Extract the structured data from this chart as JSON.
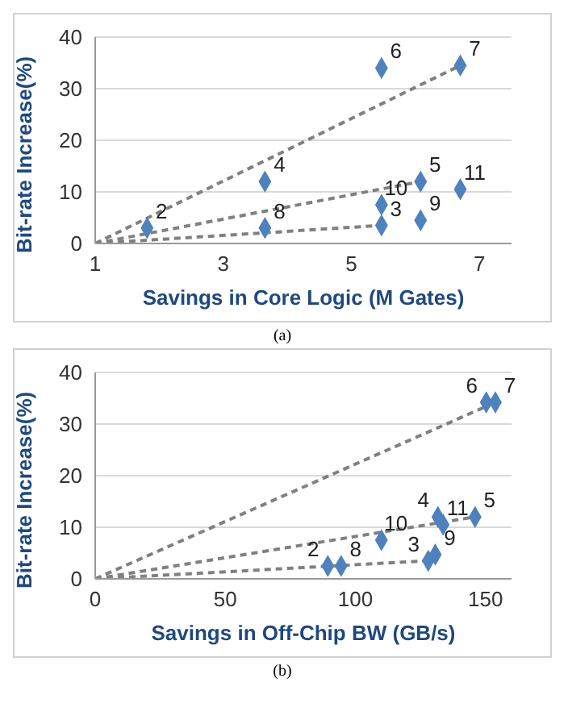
{
  "chart_data": [
    {
      "type": "scatter",
      "xlabel": "Savings in Core Logic (M Gates)",
      "ylabel": "Bit-rate Increase(%)",
      "xlim": [
        1,
        7.5
      ],
      "xticks": [
        1,
        3,
        5,
        7
      ],
      "ylim": [
        0,
        40
      ],
      "yticks": [
        0,
        10,
        20,
        30,
        40
      ],
      "grid": "y",
      "series": [
        {
          "type": "scatter",
          "marker": "diamond",
          "color": "#4f81bd",
          "x": [
            1.81,
            5.47,
            3.65,
            6.08,
            5.47,
            6.7,
            3.65,
            6.08,
            5.47,
            6.7
          ],
          "values": [
            3,
            3.5,
            12,
            12,
            34,
            34.5,
            3,
            4.5,
            7.5,
            10.5
          ]
        },
        {
          "type": "line",
          "color": "#808080",
          "line_style": "dashed",
          "x": [
            1,
            6.7
          ],
          "values": [
            0,
            34.5
          ]
        },
        {
          "type": "line",
          "color": "#808080",
          "line_style": "dashed",
          "x": [
            1,
            6.08
          ],
          "values": [
            0,
            12
          ]
        },
        {
          "type": "line",
          "color": "#808080",
          "line_style": "dashed",
          "x": [
            1,
            5.47
          ],
          "values": [
            0,
            3.5
          ]
        }
      ],
      "annotations": [
        {
          "text": "2",
          "x": 1.81,
          "y": 3
        },
        {
          "text": "3",
          "x": 5.47,
          "y": 3.5
        },
        {
          "text": "4",
          "x": 3.65,
          "y": 12
        },
        {
          "text": "5",
          "x": 6.08,
          "y": 12
        },
        {
          "text": "6",
          "x": 5.47,
          "y": 34
        },
        {
          "text": "7",
          "x": 6.7,
          "y": 34.5
        },
        {
          "text": "8",
          "x": 3.65,
          "y": 3
        },
        {
          "text": "9",
          "x": 6.08,
          "y": 4.5
        },
        {
          "text": "10",
          "x": 5.47,
          "y": 7.5
        },
        {
          "text": "11",
          "x": 6.7,
          "y": 10.5
        },
        "(a)"
      ]
    },
    {
      "type": "scatter",
      "xlabel": "Savings in Off-Chip BW (GB/s)",
      "ylabel": "Bit-rate Increase(%)",
      "xlim": [
        0,
        160
      ],
      "xticks": [
        0,
        50,
        100,
        150
      ],
      "ylim": [
        0,
        40
      ],
      "yticks": [
        0,
        10,
        20,
        30,
        40
      ],
      "grid": "y",
      "series": [
        {
          "type": "scatter",
          "marker": "diamond",
          "color": "#4f81bd",
          "x": [
            89.4,
            128,
            131.7,
            146,
            150.3,
            153.8,
            94.5,
            130.7,
            110,
            133.7
          ],
          "values": [
            2.5,
            3.5,
            12,
            12,
            34.2,
            34.2,
            2.5,
            4.7,
            7.5,
            10.5
          ]
        },
        {
          "type": "line",
          "color": "#808080",
          "line_style": "dashed",
          "x": [
            0,
            153.8
          ],
          "values": [
            0,
            34.2
          ]
        },
        {
          "type": "line",
          "color": "#808080",
          "line_style": "dashed",
          "x": [
            0,
            146
          ],
          "values": [
            0,
            12
          ]
        },
        {
          "type": "line",
          "color": "#808080",
          "line_style": "dashed",
          "x": [
            0,
            128
          ],
          "values": [
            0,
            3.5
          ]
        }
      ],
      "annotations": [
        {
          "text": "2",
          "x": 89.4,
          "y": 2.5
        },
        {
          "text": "3",
          "x": 128,
          "y": 3.5
        },
        {
          "text": "4",
          "x": 131.7,
          "y": 12
        },
        {
          "text": "5",
          "x": 146,
          "y": 12
        },
        {
          "text": "6",
          "x": 150.3,
          "y": 34.2
        },
        {
          "text": "7",
          "x": 153.8,
          "y": 34.2
        },
        {
          "text": "8",
          "x": 94.5,
          "y": 2.5
        },
        {
          "text": "9",
          "x": 130.7,
          "y": 4.7
        },
        {
          "text": "10",
          "x": 110,
          "y": 7.5
        },
        {
          "text": "11",
          "x": 133.7,
          "y": 10.5
        },
        "(b)"
      ]
    }
  ]
}
